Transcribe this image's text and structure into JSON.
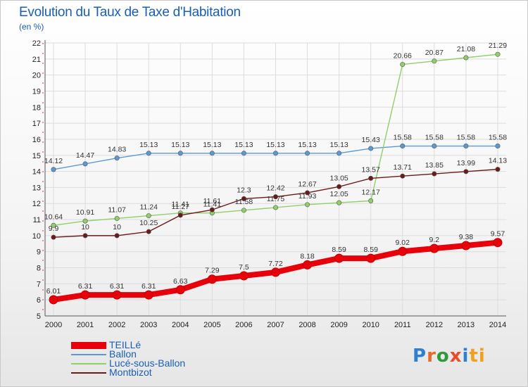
{
  "title": "Evolution du Taux de Taxe d'Habitation",
  "subtitle": "(en %)",
  "logo": [
    "P",
    "r",
    "o",
    "x",
    "i",
    "ti"
  ],
  "chart_data": {
    "type": "line",
    "x": [
      "2000",
      "2001",
      "2002",
      "2003",
      "2004",
      "2005",
      "2006",
      "2007",
      "2008",
      "2009",
      "2010",
      "2011",
      "2012",
      "2013",
      "2014"
    ],
    "ylim": [
      5,
      22
    ],
    "yticks": [
      5,
      6,
      7,
      8,
      9,
      10,
      11,
      12,
      13,
      14,
      15,
      16,
      17,
      18,
      19,
      20,
      21,
      22
    ],
    "grid": true,
    "series": [
      {
        "name": "TEILLé",
        "color": "#e8000b",
        "width": 8,
        "marker": 6,
        "values": [
          6.01,
          6.31,
          6.31,
          6.31,
          6.63,
          7.29,
          7.5,
          7.72,
          8.18,
          8.59,
          8.59,
          9.02,
          9.2,
          9.38,
          9.57
        ],
        "labels": [
          "6.01",
          "6.31",
          "6.31",
          "6.31",
          "6.63",
          "7.29",
          "7.5",
          "7.72",
          "8.18",
          "8.59",
          "8.59",
          "9.02",
          "9.2",
          "9.38",
          "9.57"
        ]
      },
      {
        "name": "Ballon",
        "color": "#5a9ad4",
        "width": 1.4,
        "marker": 3.2,
        "values": [
          14.12,
          14.47,
          14.83,
          15.13,
          15.13,
          15.13,
          15.13,
          15.13,
          15.13,
          15.13,
          15.43,
          15.58,
          15.58,
          15.58,
          15.58
        ],
        "labels": [
          "14.12",
          "14.47",
          "14.83",
          "15.13",
          "15.13",
          "15.13",
          "15.13",
          "15.13",
          "15.13",
          "15.13",
          "15.43",
          "15.58",
          "15.58",
          "15.58",
          "15.58"
        ]
      },
      {
        "name": "Lucé-sous-Ballon",
        "color": "#8fd068",
        "width": 1.4,
        "marker": 3.2,
        "values": [
          10.64,
          10.91,
          11.07,
          11.24,
          11.41,
          11.41,
          11.58,
          11.75,
          11.93,
          12.05,
          12.17,
          20.66,
          20.87,
          21.08,
          21.29
        ],
        "labels": [
          "10.64",
          "10.91",
          "11.07",
          "11.24",
          "11.41",
          "11.41",
          "11.58",
          "11.75",
          "11.93",
          "12.05",
          "12.17",
          "20.66",
          "20.87",
          "21.08",
          "21.29"
        ]
      },
      {
        "name": "Montbizot",
        "color": "#6b1a1a",
        "width": 1.4,
        "marker": 3.2,
        "values": [
          9.9,
          10,
          10,
          10.25,
          11.27,
          11.61,
          12.3,
          12.42,
          12.67,
          13.05,
          13.57,
          13.71,
          13.85,
          13.99,
          14.13
        ],
        "labels": [
          "9.9",
          "10",
          "10",
          "10.25",
          "11.27",
          "11.61",
          "12.3",
          "12.42",
          "12.67",
          "13.05",
          "13.57",
          "13.71",
          "13.85",
          "13.99",
          "14.13"
        ]
      }
    ]
  }
}
